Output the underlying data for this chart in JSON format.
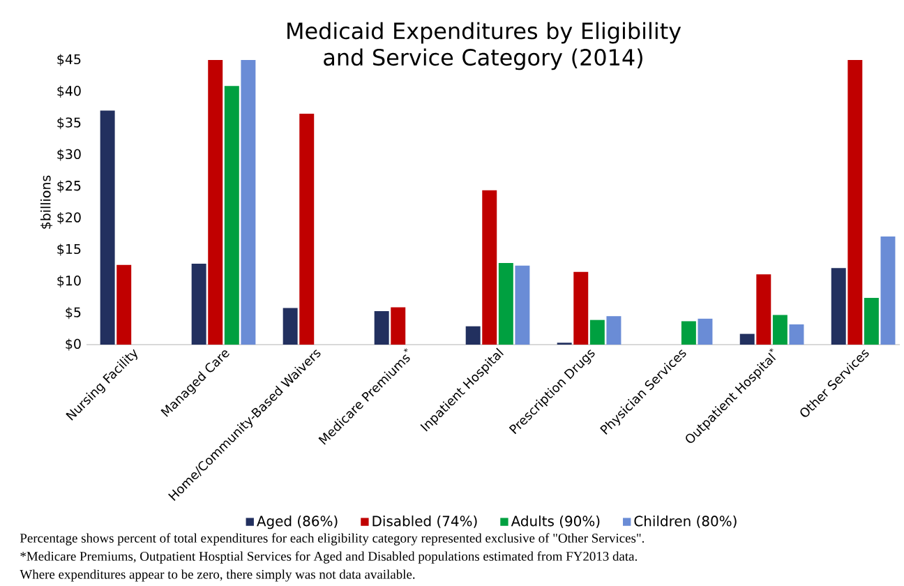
{
  "chart_data": {
    "type": "bar",
    "title": "Medicaid Expenditures by Eligibility and Service Category (2014)",
    "ylabel": "$billions",
    "categories": [
      "Nursing Facility",
      "Managed Care",
      "Home/Community-Based Waivers",
      "Medicare Premiums$^{*}$",
      "Inpatient Hospital",
      "Prescription Drugs",
      "Physician Services",
      "Outpatient Hospital$^{*}$",
      "Other Services"
    ],
    "series": [
      {
        "name": "Aged (86%)",
        "color": "#22305f",
        "values": [
          37.0,
          12.8,
          5.8,
          5.3,
          2.9,
          0.3,
          null,
          1.7,
          12.1
        ]
      },
      {
        "name": "Disabled (74%)",
        "color": "#c00000",
        "values": [
          12.6,
          45.0,
          36.5,
          5.9,
          24.4,
          11.5,
          null,
          11.1,
          45.0
        ]
      },
      {
        "name": "Adults (90%)",
        "color": "#00a040",
        "values": [
          null,
          40.9,
          null,
          null,
          12.9,
          3.9,
          3.7,
          4.7,
          7.4
        ]
      },
      {
        "name": "Children (80%)",
        "color": "#6a8cd6",
        "values": [
          null,
          45.0,
          null,
          null,
          12.5,
          4.5,
          4.1,
          3.2,
          17.1
        ]
      }
    ],
    "ylim": [
      0,
      45
    ],
    "yticks": [
      {
        "value": 0,
        "label": "$0"
      },
      {
        "value": 5,
        "label": "$5"
      },
      {
        "value": 10,
        "label": "$10"
      },
      {
        "value": 15,
        "label": "$15"
      },
      {
        "value": 20,
        "label": "$20"
      },
      {
        "value": 25,
        "label": "$25"
      },
      {
        "value": 30,
        "label": "$30"
      },
      {
        "value": 35,
        "label": "$35"
      },
      {
        "value": 40,
        "label": "$40"
      },
      {
        "value": 45,
        "label": "$45"
      }
    ],
    "legend": "bottom",
    "annotations": [
      "Percentage shows percent of total expenditures for each eligibility category represented exclusive of \"Other Services\".",
      "*Medicare Premiums, Outpatient Hosptial Services for Aged and Disabled populations estimated from FY2013 data.",
      "Where expenditures appear to be zero, there simply was not data available."
    ]
  }
}
